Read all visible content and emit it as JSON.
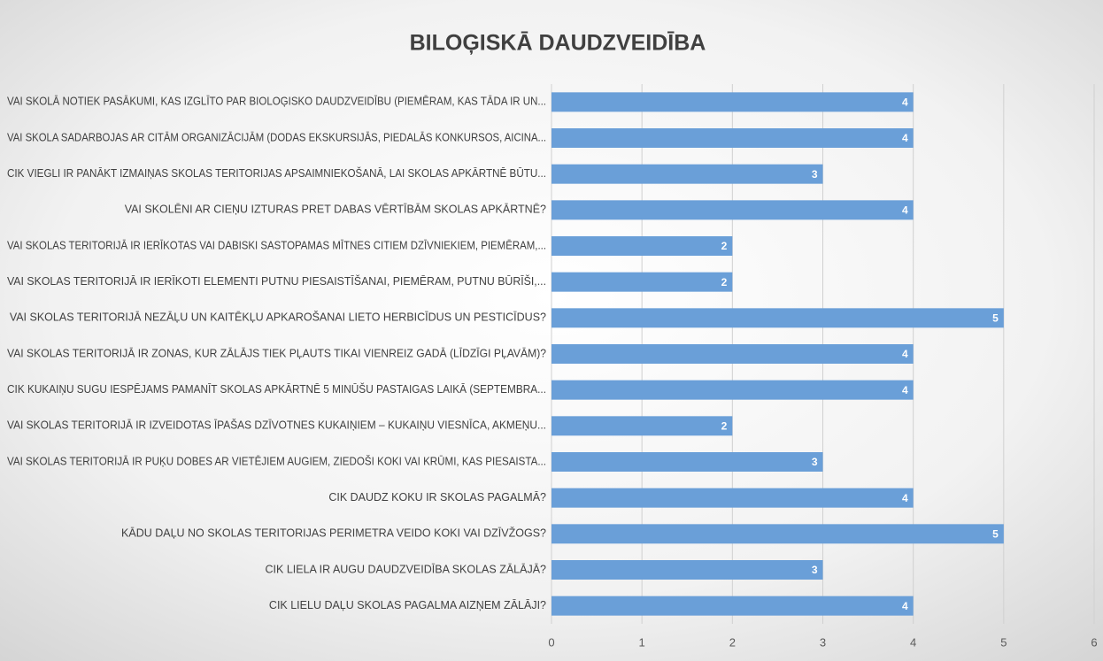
{
  "chart_data": {
    "type": "bar",
    "orientation": "horizontal",
    "title": "BILOĢISKĀ DAUDZVEIDĪBA",
    "categories": [
      "VAI SKOLĀ NOTIEK PASĀKUMI, KAS IZGLĪTO PAR BIOLOĢISKO DAUDZVEIDĪBU (PIEMĒRAM, KAS TĀDA IR UN...",
      "VAI SKOLA SADARBOJAS AR CITĀM ORGANIZĀCIJĀM (DODAS EKSKURSIJĀS, PIEDALĀS KONKURSOS, AICINA...",
      "CIK VIEGLI IR PANĀKT IZMAIŅAS SKOLAS TERITORIJAS APSAIMNIEKOŠANĀ, LAI SKOLAS APKĀRTNĒ BŪTU...",
      "VAI SKOLĒNI AR CIEŅU IZTURAS PRET DABAS VĒRTĪBĀM SKOLAS APKĀRTNĒ?",
      "VAI SKOLAS TERITORIJĀ IR IERĪKOTAS VAI DABISKI SASTOPAMAS MĪTNES CITIEM DZĪVNIEKIEM, PIEMĒRAM,...",
      "VAI SKOLAS TERITORIJĀ IR IERĪKOTI ELEMENTI PUTNU PIESAISTĪŠANAI, PIEMĒRAM, PUTNU BŪRĪŠI,...",
      "VAI SKOLAS TERITORIJĀ NEZĀĻU UN KAITĒKĻU APKAROŠANAI LIETO HERBICĪDUS UN PESTICĪDUS?",
      "VAI SKOLAS TERITORIJĀ IR ZONAS, KUR ZĀLĀJS TIEK PĻAUTS TIKAI VIENREIZ GADĀ (LĪDZĪGI PĻAVĀM)?",
      "CIK KUKAIŅU SUGU IESPĒJAMS PAMANĪT SKOLAS APKĀRTNĒ 5 MINŪŠU PASTAIGAS LAIKĀ (SEPTEMBRA...",
      "VAI SKOLAS TERITORIJĀ IR IZVEIDOTAS ĪPAŠAS DZĪVOTNES KUKAIŅIEM – KUKAIŅU VIESNĪCA, AKMEŅU...",
      "VAI SKOLAS TERITORIJĀ IR PUĶU DOBES AR VIETĒJIEM AUGIEM, ZIEDOŠI KOKI VAI KRŪMI, KAS PIESAISTA...",
      "CIK DAUDZ KOKU IR SKOLAS PAGALMĀ?",
      "KĀDU DAĻU NO SKOLAS TERITORIJAS PERIMETRA VEIDO KOKI VAI DZĪVŽOGS?",
      "CIK LIELA IR AUGU DAUDZVEIDĪBA SKOLAS ZĀLĀJĀ?",
      "CIK LIELU DAĻU SKOLAS PAGALMA AIZŅEM ZĀLĀJI?"
    ],
    "values": [
      4,
      4,
      3,
      4,
      2,
      2,
      5,
      4,
      4,
      2,
      3,
      4,
      5,
      3,
      4
    ],
    "color": "#6a9fd8",
    "xlim": [
      0,
      6
    ],
    "xticks": [
      0,
      1,
      2,
      3,
      4,
      5,
      6
    ],
    "grid": true
  }
}
